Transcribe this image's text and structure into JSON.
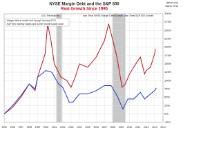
{
  "chart_data": {
    "type": "line",
    "title": "NYSE Margin Debt and the S&P 500",
    "subtitle": "Real Growth Since 1995",
    "source": "dshort.com",
    "date": "March 2013",
    "annotations": [
      "Margin debt at month-end through January 2013",
      "S&P 500 monthly closes and current month's daily close"
    ],
    "recessions": {
      "name": "Recessions",
      "color": "#c8c8c8",
      "ranges": [
        [
          2001.25,
          2001.9
        ],
        [
          2007.95,
          2009.5
        ]
      ]
    },
    "series": [
      {
        "name": "Real NYSE Margin Debt Growth",
        "color": "#c0141c",
        "x": [
          1995,
          1996,
          1997,
          1998,
          1998.7,
          1999,
          1999.9,
          2000.2,
          2000.6,
          2001,
          2001.8,
          2002.5,
          2003,
          2003.5,
          2004,
          2005,
          2006,
          2007,
          2007.5,
          2008,
          2008.5,
          2009.1,
          2009.5,
          2010,
          2011,
          2011.3,
          2011.8,
          2012,
          2012.5,
          2013,
          2013.1
        ],
        "values": [
          0,
          20,
          50,
          90,
          70,
          110,
          180,
          270,
          220,
          150,
          110,
          100,
          80,
          110,
          150,
          140,
          170,
          220,
          270,
          220,
          170,
          80,
          90,
          120,
          160,
          170,
          120,
          130,
          140,
          180,
          195
        ]
      },
      {
        "name": "Real S&P 500 Growth",
        "color": "#1f3fbf",
        "x": [
          1995,
          1996,
          1997,
          1998,
          1998.7,
          1999,
          2000,
          2000.7,
          2001.5,
          2002,
          2002.8,
          2003.2,
          2004,
          2005,
          2006,
          2007,
          2007.8,
          2008.5,
          2009.2,
          2009.8,
          2010.5,
          2011.3,
          2011.8,
          2012.5,
          2013,
          2013.2
        ],
        "values": [
          0,
          25,
          55,
          90,
          75,
          110,
          130,
          125,
          90,
          80,
          35,
          35,
          60,
          60,
          70,
          85,
          85,
          55,
          15,
          45,
          45,
          65,
          45,
          60,
          70,
          78
        ]
      }
    ],
    "xlim": [
      1995,
      2014
    ],
    "xticks": [
      1995,
      1996,
      1997,
      1998,
      1999,
      2000,
      2001,
      2002,
      2003,
      2004,
      2005,
      2006,
      2007,
      2008,
      2009,
      2010,
      2011,
      2012,
      2013,
      2014
    ],
    "ylim": [
      -25,
      300
    ],
    "yticks": [
      {
        "value": -25,
        "label": "-25%"
      },
      {
        "value": 0,
        "label": "0%"
      },
      {
        "value": 25,
        "label": "25%"
      },
      {
        "value": 50,
        "label": "50%"
      },
      {
        "value": 75,
        "label": "75%"
      },
      {
        "value": 100,
        "label": "100%"
      },
      {
        "value": 125,
        "label": "125%"
      },
      {
        "value": 150,
        "label": "150%"
      },
      {
        "value": 175,
        "label": "175%"
      },
      {
        "value": 200,
        "label": "200%"
      },
      {
        "value": 225,
        "label": "225%"
      },
      {
        "value": 250,
        "label": "250%"
      },
      {
        "value": 275,
        "label": "275%"
      },
      {
        "value": 300,
        "label": "300%"
      }
    ],
    "grid": true
  }
}
